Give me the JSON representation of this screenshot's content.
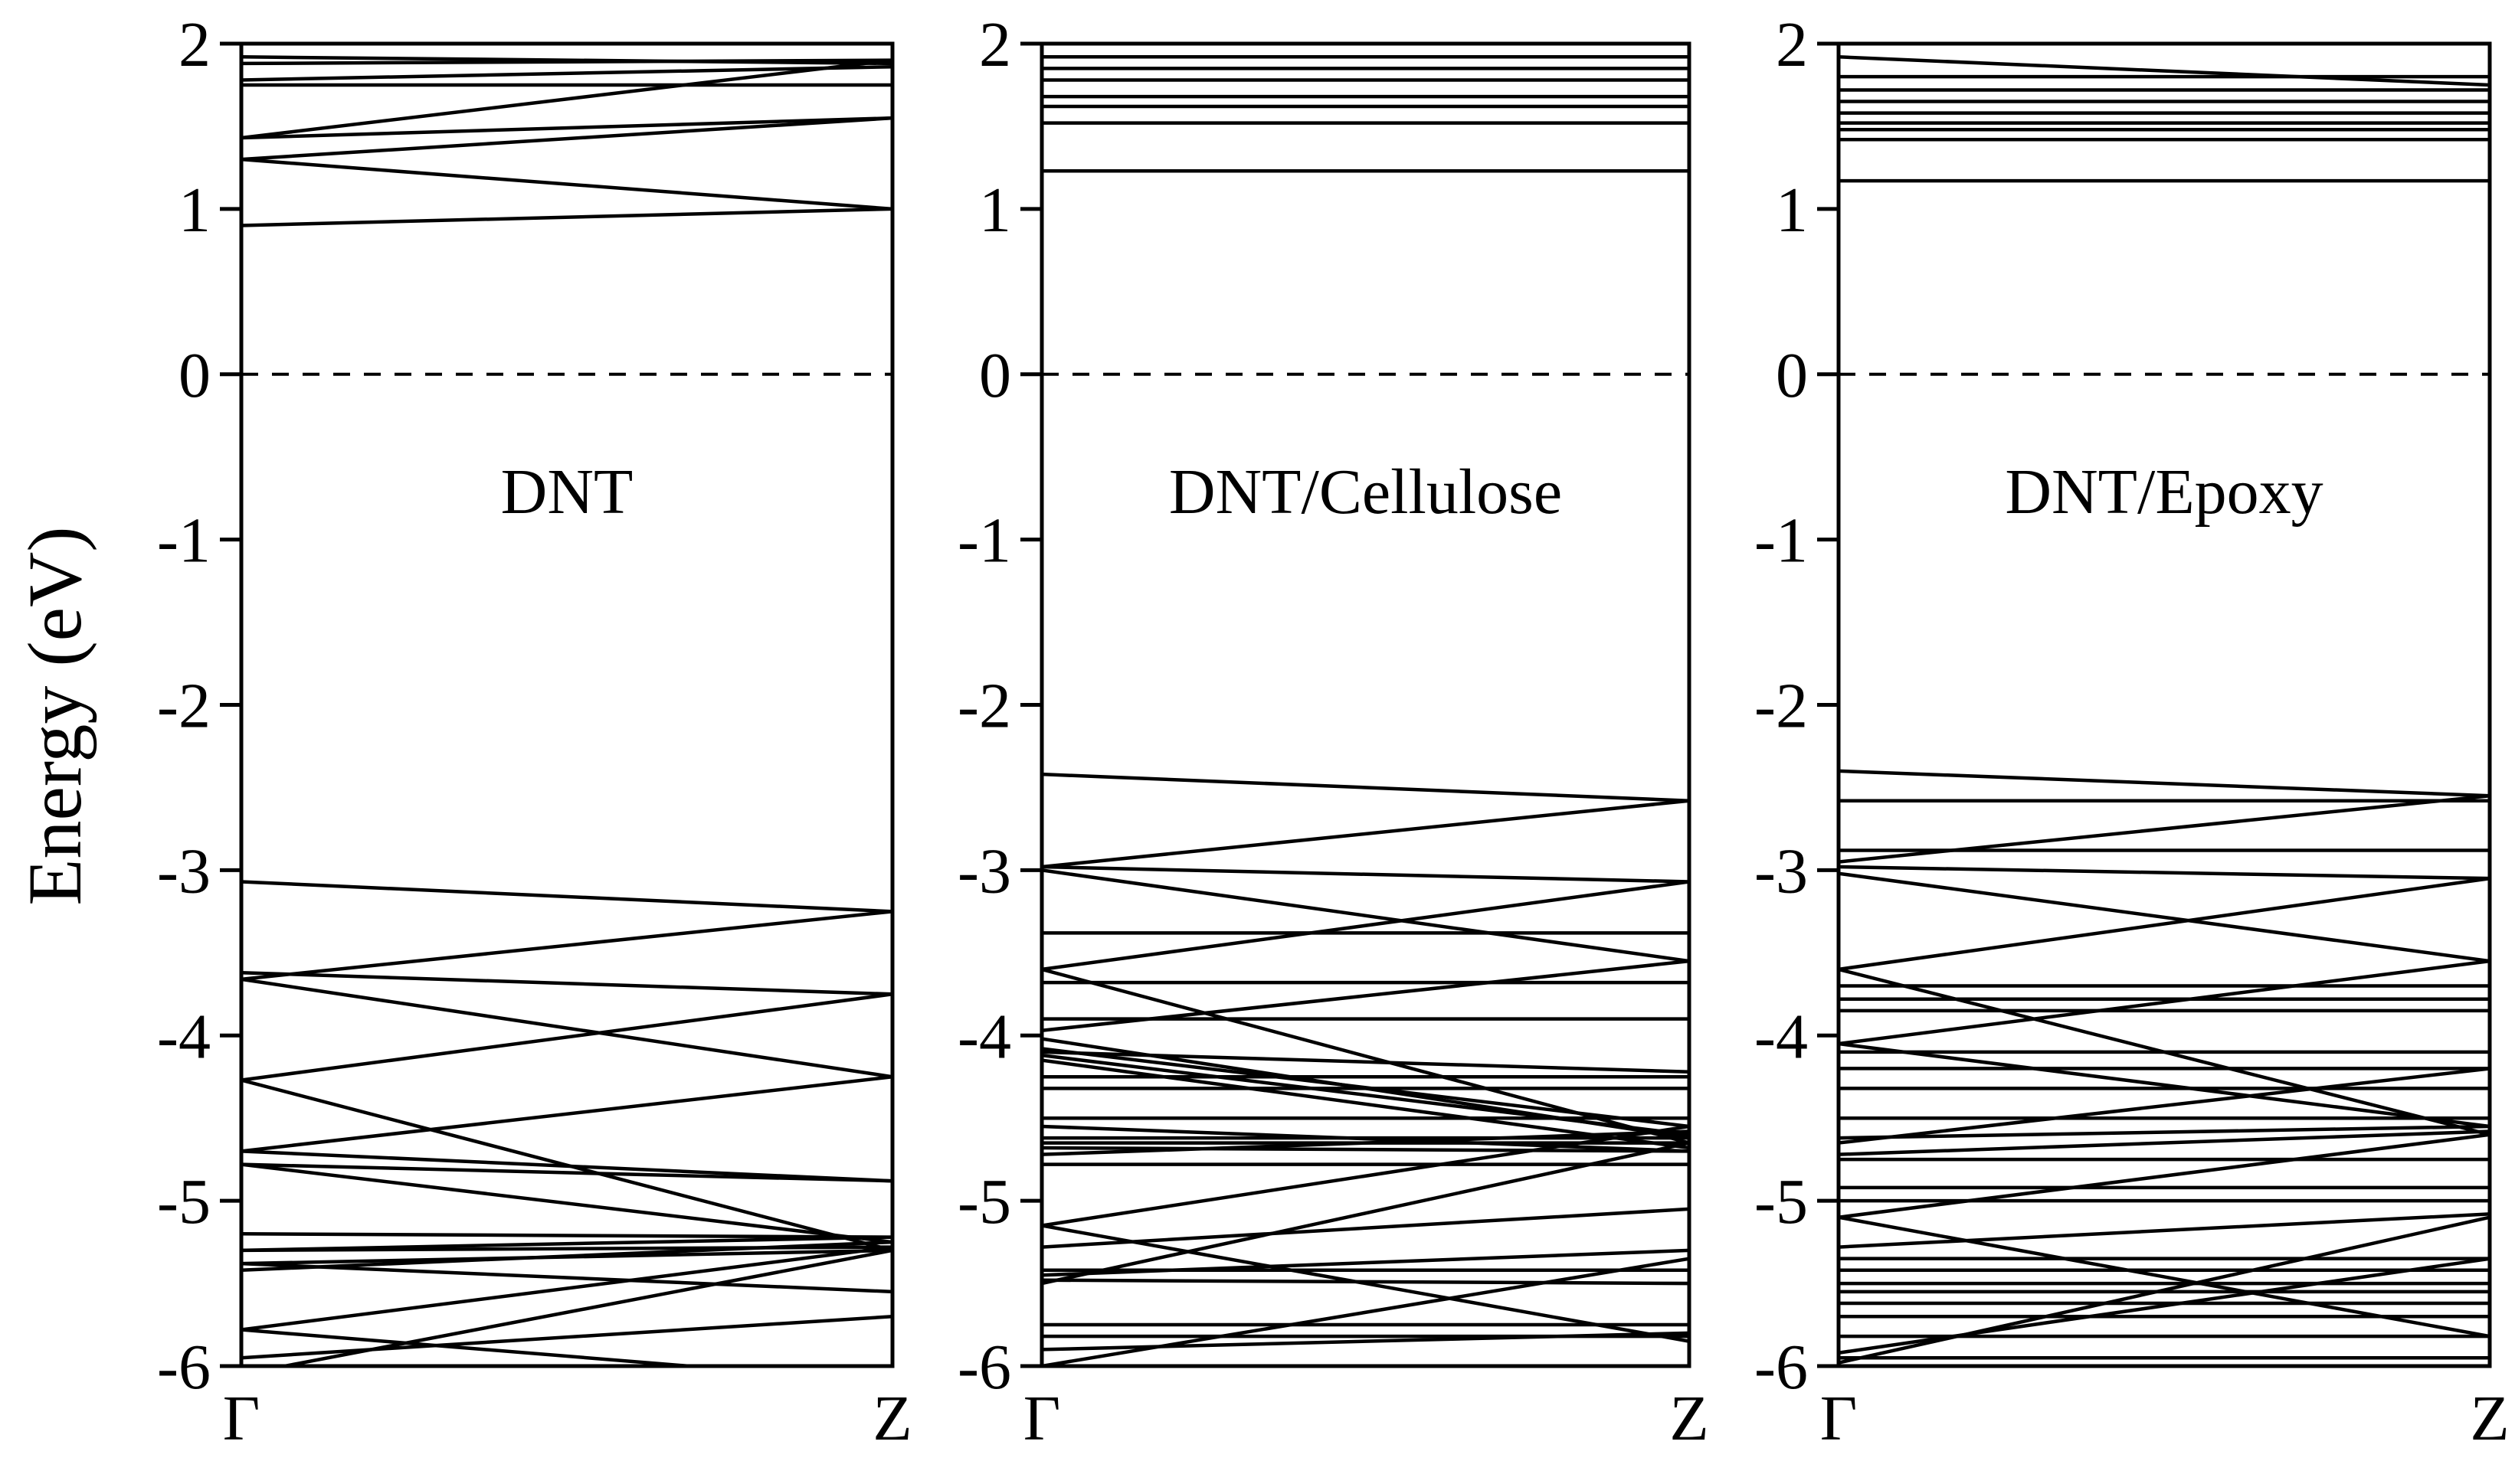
{
  "chart_data": {
    "type": "line",
    "ylabel": "Energy (eV)",
    "ylim": [
      -6,
      2
    ],
    "yticks": [
      2,
      1,
      0,
      -1,
      -2,
      -3,
      -4,
      -5,
      -6
    ],
    "ytick_labels": [
      "2",
      "1",
      "0",
      "-1",
      "-2",
      "-3",
      "-4",
      "-5",
      "-6"
    ],
    "x_kpoints": [
      "Γ",
      "Z"
    ],
    "fermi_level": 0,
    "fermi_line_style": "dashed",
    "panels": [
      {
        "label": "DNT",
        "bands": [
          [
            1.92,
            1.88
          ],
          [
            1.88,
            1.9
          ],
          [
            1.78,
            1.86
          ],
          [
            1.75,
            1.75
          ],
          [
            1.43,
            1.9
          ],
          [
            1.43,
            1.55
          ],
          [
            1.3,
            1.55
          ],
          [
            1.3,
            1.0
          ],
          [
            0.9,
            1.0
          ],
          [
            -3.07,
            -3.25
          ],
          [
            -3.62,
            -3.75
          ],
          [
            -3.66,
            -3.25
          ],
          [
            -3.66,
            -4.25
          ],
          [
            -4.27,
            -3.75
          ],
          [
            -4.27,
            -5.3
          ],
          [
            -4.7,
            -4.25
          ],
          [
            -4.7,
            -4.88
          ],
          [
            -4.78,
            -5.25
          ],
          [
            -4.78,
            -4.88
          ],
          [
            -5.2,
            -5.22
          ],
          [
            -5.3,
            -5.22
          ],
          [
            -5.3,
            -5.28
          ],
          [
            -5.38,
            -5.3
          ],
          [
            -5.38,
            -5.55
          ],
          [
            -5.42,
            -5.25
          ],
          [
            -5.78,
            -5.28
          ],
          [
            -5.78,
            -6.1
          ],
          [
            -5.95,
            -5.7
          ],
          [
            -6.05,
            -5.3
          ]
        ]
      },
      {
        "label": "DNT/Cellulose",
        "bands": [
          [
            1.92,
            1.92
          ],
          [
            1.85,
            1.85
          ],
          [
            1.78,
            1.78
          ],
          [
            1.68,
            1.68
          ],
          [
            1.62,
            1.62
          ],
          [
            1.52,
            1.52
          ],
          [
            1.23,
            1.23
          ],
          [
            -2.42,
            -2.58
          ],
          [
            -2.98,
            -2.58
          ],
          [
            -2.98,
            -3.07
          ],
          [
            -3.0,
            -3.55
          ],
          [
            -3.38,
            -3.38
          ],
          [
            -3.6,
            -3.07
          ],
          [
            -3.6,
            -4.65
          ],
          [
            -3.68,
            -3.68
          ],
          [
            -3.9,
            -3.9
          ],
          [
            -3.97,
            -3.55
          ],
          [
            -4.02,
            -4.62
          ],
          [
            -4.08,
            -4.55
          ],
          [
            -4.1,
            -4.22
          ],
          [
            -4.12,
            -4.6
          ],
          [
            -4.15,
            -4.68
          ],
          [
            -4.25,
            -4.25
          ],
          [
            -4.32,
            -4.32
          ],
          [
            -4.5,
            -4.5
          ],
          [
            -4.55,
            -4.7
          ],
          [
            -4.62,
            -4.62
          ],
          [
            -4.65,
            -4.65
          ],
          [
            -4.68,
            -4.7
          ],
          [
            -4.72,
            -4.58
          ],
          [
            -4.78,
            -4.78
          ],
          [
            -5.15,
            -4.55
          ],
          [
            -5.15,
            -5.85
          ],
          [
            -5.28,
            -5.05
          ],
          [
            -5.42,
            -5.42
          ],
          [
            -5.45,
            -5.3
          ],
          [
            -5.48,
            -5.5
          ],
          [
            -5.5,
            -4.65
          ],
          [
            -5.75,
            -5.75
          ],
          [
            -5.82,
            -5.82
          ],
          [
            -5.9,
            -5.8
          ],
          [
            -6.0,
            -5.35
          ]
        ]
      },
      {
        "label": "DNT/Epoxy",
        "bands": [
          [
            1.92,
            1.75
          ],
          [
            1.8,
            1.8
          ],
          [
            1.72,
            1.72
          ],
          [
            1.65,
            1.65
          ],
          [
            1.58,
            1.58
          ],
          [
            1.52,
            1.52
          ],
          [
            1.48,
            1.48
          ],
          [
            1.42,
            1.42
          ],
          [
            1.17,
            1.17
          ],
          [
            -2.4,
            -2.55
          ],
          [
            -2.58,
            -2.58
          ],
          [
            -2.88,
            -2.88
          ],
          [
            -2.95,
            -2.55
          ],
          [
            -2.98,
            -3.05
          ],
          [
            -3.02,
            -3.55
          ],
          [
            -3.6,
            -3.05
          ],
          [
            -3.6,
            -4.6
          ],
          [
            -3.7,
            -3.7
          ],
          [
            -3.78,
            -3.78
          ],
          [
            -3.85,
            -3.85
          ],
          [
            -4.05,
            -3.55
          ],
          [
            -4.05,
            -4.55
          ],
          [
            -4.1,
            -4.1
          ],
          [
            -4.2,
            -4.2
          ],
          [
            -4.32,
            -4.32
          ],
          [
            -4.5,
            -4.5
          ],
          [
            -4.62,
            -4.55
          ],
          [
            -4.65,
            -4.2
          ],
          [
            -4.72,
            -4.58
          ],
          [
            -4.75,
            -4.75
          ],
          [
            -4.92,
            -4.92
          ],
          [
            -5.0,
            -5.0
          ],
          [
            -5.1,
            -4.6
          ],
          [
            -5.1,
            -5.82
          ],
          [
            -5.28,
            -5.08
          ],
          [
            -5.35,
            -5.35
          ],
          [
            -5.42,
            -5.42
          ],
          [
            -5.5,
            -5.5
          ],
          [
            -5.55,
            -5.55
          ],
          [
            -5.62,
            -5.62
          ],
          [
            -5.7,
            -5.7
          ],
          [
            -5.82,
            -5.82
          ],
          [
            -5.92,
            -5.35
          ],
          [
            -5.95,
            -5.95
          ],
          [
            -5.98,
            -5.1
          ]
        ]
      }
    ]
  }
}
